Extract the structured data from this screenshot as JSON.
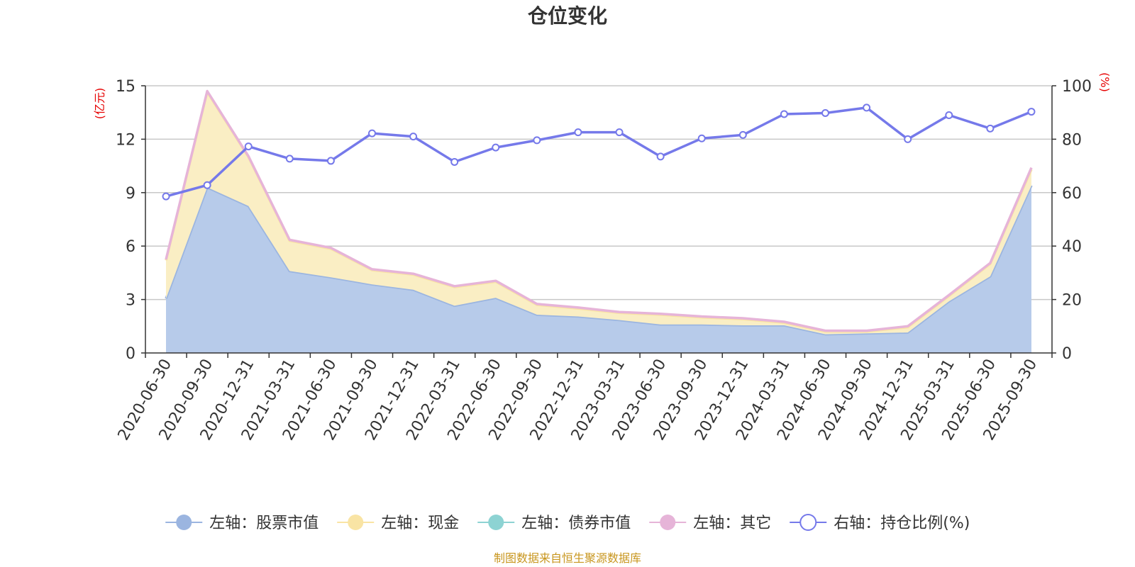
{
  "chart_data": {
    "type": "area",
    "title": "仓位变化",
    "left_axis_unit": "(亿元)",
    "right_axis_unit": "(%)",
    "categories": [
      "2020-06-30",
      "2020-09-30",
      "2020-12-31",
      "2021-03-31",
      "2021-06-30",
      "2021-09-30",
      "2021-12-31",
      "2022-03-31",
      "2022-06-30",
      "2022-09-30",
      "2022-12-31",
      "2023-03-31",
      "2023-06-30",
      "2023-09-30",
      "2023-12-31",
      "2024-03-31",
      "2024-06-30",
      "2024-09-30",
      "2024-12-31",
      "2025-03-31",
      "2025-06-30",
      "2025-09-30"
    ],
    "ylim_left": [
      0,
      15
    ],
    "yticks_left": [
      0,
      3,
      6,
      9,
      12,
      15
    ],
    "ylim_right": [
      0,
      100
    ],
    "yticks_right": [
      0,
      20,
      40,
      60,
      80,
      100
    ],
    "grid": true,
    "legend_position": "bottom",
    "series": [
      {
        "name": "左轴：股票市值",
        "axis": "left",
        "kind": "stacked-area",
        "color": "#9bb5e0",
        "fill": "#b7cbea",
        "values": [
          3.05,
          9.3,
          8.25,
          4.6,
          4.25,
          3.85,
          3.55,
          2.65,
          3.1,
          2.15,
          2.05,
          1.85,
          1.6,
          1.6,
          1.55,
          1.55,
          1.05,
          1.1,
          1.15,
          2.9,
          4.3,
          9.4
        ]
      },
      {
        "name": "左轴：现金",
        "axis": "left",
        "kind": "stacked-area",
        "color": "#f9e4a4",
        "fill": "#faeec4",
        "values": [
          2.15,
          5.35,
          2.75,
          1.7,
          1.6,
          0.8,
          0.85,
          1.05,
          0.9,
          0.55,
          0.45,
          0.4,
          0.55,
          0.4,
          0.35,
          0.15,
          0.15,
          0.1,
          0.3,
          0.3,
          0.7,
          0.9
        ]
      },
      {
        "name": "左轴：债券市值",
        "axis": "left",
        "kind": "stacked-area",
        "color": "#8dd3d3",
        "fill": "#b9e4e4",
        "values": [
          0,
          0,
          0,
          0,
          0,
          0,
          0,
          0,
          0,
          0,
          0,
          0,
          0,
          0,
          0,
          0,
          0,
          0,
          0,
          0,
          0,
          0
        ]
      },
      {
        "name": "左轴：其它",
        "axis": "left",
        "kind": "stacked-area",
        "color": "#e6b4d8",
        "fill": "#f2d6e8",
        "values": [
          0.05,
          0.05,
          0.05,
          0.05,
          0.05,
          0.05,
          0.05,
          0.05,
          0.05,
          0.05,
          0.05,
          0.05,
          0.05,
          0.05,
          0.05,
          0.05,
          0.05,
          0.05,
          0.05,
          0.05,
          0.05,
          0.1
        ]
      },
      {
        "name": "右轴：持仓比例(%)",
        "axis": "right",
        "kind": "line",
        "color": "#7579ea",
        "values": [
          58.6,
          62.8,
          77.3,
          72.7,
          71.9,
          82.2,
          81.0,
          71.5,
          76.9,
          79.6,
          82.6,
          82.6,
          73.5,
          80.3,
          81.6,
          89.4,
          89.8,
          91.8,
          80.0,
          89.0,
          84.0,
          90.3
        ]
      }
    ]
  },
  "source_note": "制图数据来自恒生聚源数据库",
  "colors": {
    "axis_unit": "#e60000",
    "source_note": "#c8961e",
    "grid": "#c8c8c8",
    "axis_line": "#333333"
  }
}
